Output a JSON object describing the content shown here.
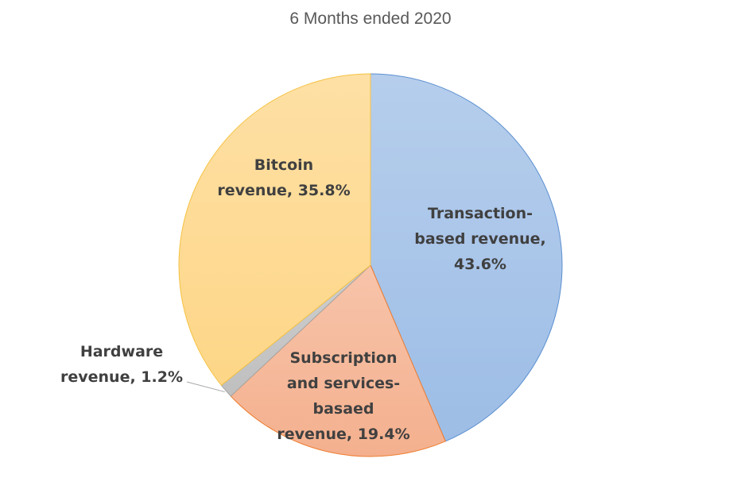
{
  "chart_data": {
    "type": "pie",
    "title": "6 Months ended 2020",
    "slices": [
      {
        "key": "transaction",
        "label_lines": [
          "Transaction-",
          "based revenue,",
          "43.6%"
        ],
        "name": "Transaction-based revenue",
        "value": 43.6,
        "color": "#9dbde6",
        "stroke": "#5b8fd0"
      },
      {
        "key": "subscription",
        "label_lines": [
          "Subscription",
          "and services-",
          "basaed",
          "revenue, 19.4%"
        ],
        "name": "Subscription and services-basaed revenue",
        "value": 19.4,
        "color": "#f4b08e",
        "stroke": "#ed7d31"
      },
      {
        "key": "hardware",
        "label_lines": [
          "Hardware",
          "revenue, 1.2%"
        ],
        "name": "Hardware revenue",
        "value": 1.2,
        "color": "#bfbfbf",
        "stroke": "#a5a5a5"
      },
      {
        "key": "bitcoin",
        "label_lines": [
          "Bitcoin",
          "revenue, 35.8%"
        ],
        "name": "Bitcoin revenue",
        "value": 35.8,
        "color": "#fdd687",
        "stroke": "#f5c242"
      }
    ]
  }
}
